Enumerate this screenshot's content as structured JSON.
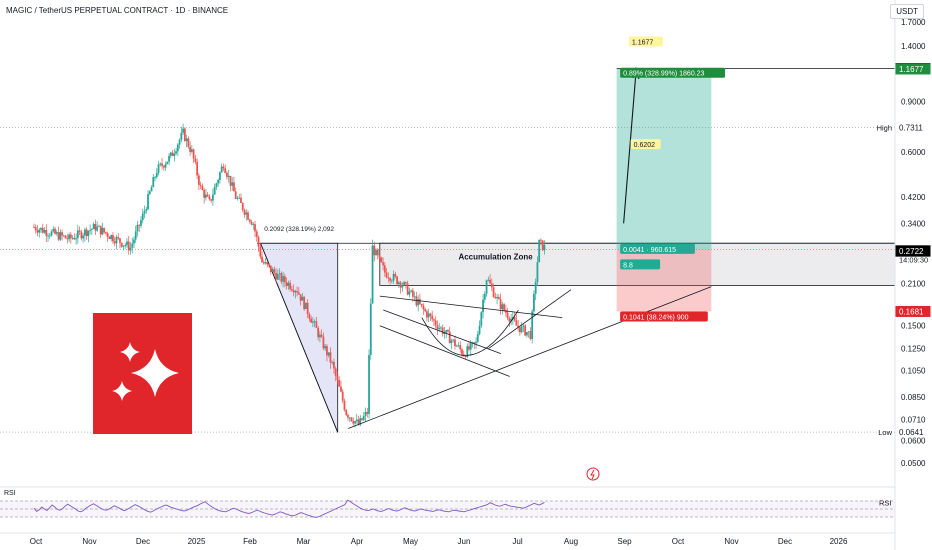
{
  "header": {
    "title": "MAGIC / TetherUS PERPETUAL CONTRACT · 1D · BINANCE",
    "currency": "USDT"
  },
  "colors": {
    "up": "#26a69a",
    "down": "#ef5350",
    "rsi": "#7e57c2",
    "target": "#22ab94",
    "stop": "#ef5350",
    "price": "#000000",
    "zone": "#b2b5be",
    "triangle": "#9598e0"
  },
  "chart_data": [
    {
      "type": "candlestick",
      "y_scale": "log",
      "ylim": [
        0.042,
        1.9
      ],
      "y_ticks": [
        "1.7000",
        "1.4000",
        "0.9000",
        "0.6000",
        "0.4200",
        "0.3400",
        "0.2100",
        "0.1500",
        "0.1250",
        "0.1050",
        "0.0850",
        "0.0710",
        "0.0600",
        "0.0500"
      ],
      "x_ticks": [
        "Oct",
        "Nov",
        "Dec",
        "2025",
        "Feb",
        "Mar",
        "Apr",
        "May",
        "Jun",
        "Jul",
        "Aug",
        "Sep",
        "Oct",
        "Nov",
        "Dec",
        "2026"
      ],
      "price_labels": [
        {
          "value": "1.1707",
          "fill": "#000000",
          "text": "#ffffff"
        },
        {
          "value": "1.1677",
          "fill": "#1e8e3e",
          "text": "#ffffff"
        },
        {
          "value": "0.7311",
          "fill": "#ffffff",
          "text": "#131722",
          "prefix": "High"
        },
        {
          "value": "0.2763",
          "fill": "#ffffff",
          "text": "#131722",
          "sub": "14:09:30"
        },
        {
          "value": "0.2729",
          "fill": "#000000",
          "text": "#ffffff"
        },
        {
          "value": "0.2722",
          "fill": "#000000",
          "text": "#ffffff"
        },
        {
          "value": "0.1681",
          "fill": "#e0262b",
          "text": "#ffffff"
        },
        {
          "value": "0.0641",
          "fill": "#ffffff",
          "text": "#131722",
          "prefix": "Low"
        }
      ],
      "annotations": {
        "zone_label": "Accumulation Zone",
        "measure_label": "0.2092 (328.19%) 2,092",
        "target_value": "1.1677",
        "target_stats": "0.89% (328.99%) 1860.23",
        "mid_value": "0.6202",
        "entry_stats": "0.0041 · 960.615",
        "entry_ratio": "8.8",
        "stop_stats": "0.1041 (38.24%) 900"
      }
    },
    {
      "type": "line",
      "title": "RSI",
      "value_label": "66.74",
      "ylim": [
        0,
        100
      ],
      "levels": [
        70,
        50,
        30
      ],
      "values": [
        52,
        44,
        48,
        55,
        50,
        46,
        53,
        60,
        55,
        49,
        47,
        51,
        57,
        62,
        58,
        54,
        50,
        45,
        43,
        46,
        52,
        56,
        60,
        63,
        59,
        55,
        51,
        48,
        47,
        50,
        54,
        58,
        55,
        52,
        48,
        46,
        49,
        53,
        57,
        61,
        58,
        55,
        51,
        47,
        44,
        42,
        45,
        49,
        52,
        55,
        58,
        60,
        57,
        54,
        52,
        50,
        48,
        46,
        45,
        47,
        50,
        53,
        56,
        58,
        62,
        65,
        68,
        63,
        58,
        54,
        50,
        47,
        45,
        44,
        43,
        46,
        49,
        52,
        50,
        47,
        44,
        42,
        40,
        39,
        41,
        44,
        47,
        45,
        42,
        40,
        38,
        36,
        35,
        37,
        40,
        43,
        41,
        38,
        36,
        34,
        33,
        35,
        38,
        41,
        39,
        36,
        34,
        32,
        30,
        29,
        31,
        34,
        37,
        40,
        43,
        46,
        49,
        52,
        55,
        58,
        61,
        72,
        69,
        64,
        60,
        56,
        52,
        49,
        47,
        46,
        48,
        50,
        47,
        45,
        44,
        46,
        49,
        51,
        48,
        46,
        45,
        47,
        50,
        53,
        51,
        48,
        46,
        45,
        47,
        50,
        49,
        47,
        46,
        45,
        44,
        46,
        48,
        47,
        45,
        44,
        43,
        45,
        47,
        46,
        45,
        44,
        43,
        45,
        47,
        49,
        51,
        53,
        55,
        57,
        59,
        61,
        66,
        63,
        60,
        58,
        57,
        60,
        62,
        59,
        57,
        56,
        55,
        54,
        53,
        52,
        55,
        58,
        61,
        64,
        62,
        60,
        63,
        66.74
      ]
    }
  ]
}
